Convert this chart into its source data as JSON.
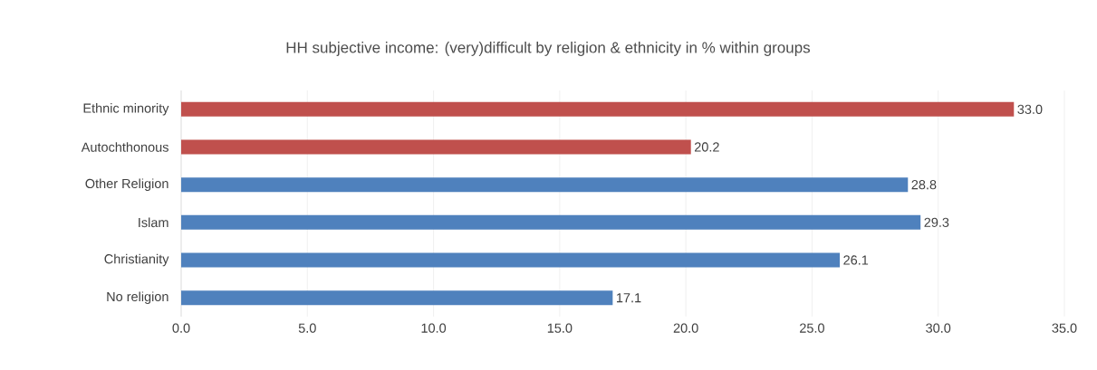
{
  "chart_data": {
    "type": "bar",
    "orientation": "horizontal",
    "title": "HH subjective income: (very)difficult by religion & ethnicity in % within groups",
    "categories": [
      "Ethnic minority",
      "Autochthonous",
      "Other Religion",
      "Islam",
      "Christianity",
      "No religion"
    ],
    "values": [
      33.0,
      20.2,
      28.8,
      29.3,
      26.1,
      17.1
    ],
    "value_labels": [
      "33.0",
      "20.2",
      "28.8",
      "29.3",
      "26.1",
      "17.1"
    ],
    "colors": [
      "#c0504d",
      "#c0504d",
      "#4f81bd",
      "#4f81bd",
      "#4f81bd",
      "#4f81bd"
    ],
    "xlim": [
      0,
      35
    ],
    "xticks": [
      {
        "value": 0,
        "label": "0.0"
      },
      {
        "value": 5,
        "label": "5.0"
      },
      {
        "value": 10,
        "label": "10.0"
      },
      {
        "value": 15,
        "label": "15.0"
      },
      {
        "value": 20,
        "label": "20.0"
      },
      {
        "value": 25,
        "label": "25.0"
      },
      {
        "value": 30,
        "label": "30.0"
      },
      {
        "value": 35,
        "label": "35.0"
      }
    ],
    "grid": "x"
  }
}
